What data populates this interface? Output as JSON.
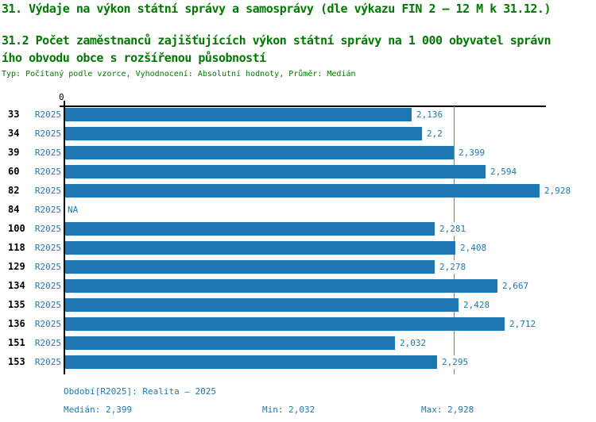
{
  "header": {
    "title": "31. Výdaje na výkon státní správy a samosprávy (dle výkazu FIN 2 – 12 M k 31.12.)",
    "subtitle_line1": "31.2 Počet zaměstnanců zajišťujících výkon státní správy na 1 000 obyvatel správn",
    "subtitle_line2": "ího obvodu obce s rozšířenou působností",
    "meta": "Typ: Počítaný podle vzorce, Vyhodnocení: Absolutní hodnoty, Průměr: Medián"
  },
  "chart_data": {
    "type": "bar",
    "orientation": "horizontal",
    "title": "31.2 Počet zaměstnanců zajišťujících výkon státní správy na 1 000 obyvatel správního obvodu obce s rozšířenou působností",
    "categories": [
      "33",
      "34",
      "39",
      "60",
      "82",
      "84",
      "100",
      "118",
      "129",
      "134",
      "135",
      "136",
      "151",
      "153"
    ],
    "series": [
      {
        "name": "R2025",
        "values": [
          2.136,
          2.2,
          2.399,
          2.594,
          2.928,
          null,
          2.281,
          2.408,
          2.278,
          2.667,
          2.428,
          2.712,
          2.032,
          2.295
        ],
        "labels": [
          "2,136",
          "2,2",
          "2,399",
          "2,594",
          "2,928",
          "NA",
          "2,281",
          "2,408",
          "2,278",
          "2,667",
          "2,428",
          "2,712",
          "2,032",
          "2,295"
        ]
      }
    ],
    "axis_zero_label": "0",
    "xlim": [
      0,
      3.0
    ],
    "median": 2.399,
    "min": 2.032,
    "max": 2.928,
    "median_line": true,
    "grid": false,
    "legend_position": "none",
    "bar_color": "#1f77b4",
    "median_line_color": "#4e94cc",
    "header_color": "#007800"
  },
  "footer": {
    "period": "Období[R2025]: Realita – 2025",
    "median": "Medián: 2,399",
    "min": "Min: 2,032",
    "max": "Max: 2,928"
  }
}
